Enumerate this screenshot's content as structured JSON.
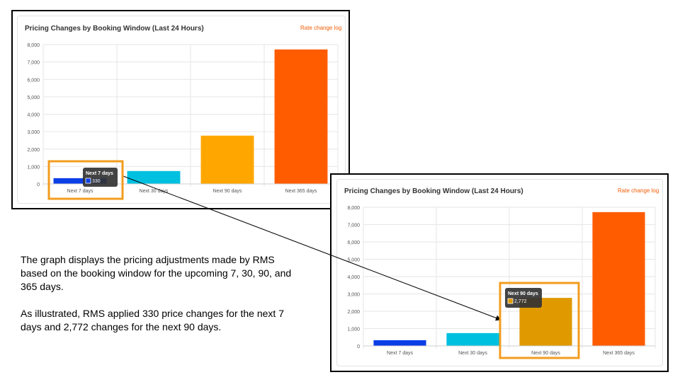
{
  "panels": [
    {
      "title": "Pricing Changes by Booking Window (Last 24 Hours)",
      "link_label": "Rate change log",
      "tooltip": {
        "title": "Next 7 days",
        "value": "330"
      }
    },
    {
      "title": "Pricing Changes by Booking Window (Last 24 Hours)",
      "link_label": "Rate change log",
      "tooltip": {
        "title": "Next 90 days",
        "value": "2,772"
      }
    }
  ],
  "chart_data": {
    "type": "bar",
    "categories": [
      "Next 7 days",
      "Next 30 days",
      "Next 90 days",
      "Next 365 days"
    ],
    "values": [
      330,
      740,
      2772,
      7720
    ],
    "colors": [
      "#0a3ee6",
      "#00c0e0",
      "#ffa600",
      "#ff5c00"
    ],
    "highlight_color": "#e09a00",
    "ylim": [
      0,
      8000
    ],
    "yticks": [
      0,
      1000,
      2000,
      3000,
      4000,
      5000,
      6000,
      7000,
      8000
    ],
    "ytick_labels": [
      "0",
      "1,000",
      "2,000",
      "3,000",
      "4,000",
      "5,000",
      "6,000",
      "7,000",
      "8,000"
    ],
    "grid": true,
    "title": "Pricing Changes by Booking Window (Last 24 Hours)",
    "xlabel": "",
    "ylabel": ""
  },
  "caption": {
    "paragraph1": "The graph displays the pricing adjustments made by RMS based on the booking window for the upcoming 7, 30, 90, and 365 days.",
    "paragraph2": "As illustrated, RMS applied 330 price changes for the next 7 days and 2,772 changes for the next 90 days."
  },
  "colors": {
    "highlight_box": "#f39c1e",
    "accent_link": "#f25c05",
    "tooltip_bg": "#333333"
  }
}
